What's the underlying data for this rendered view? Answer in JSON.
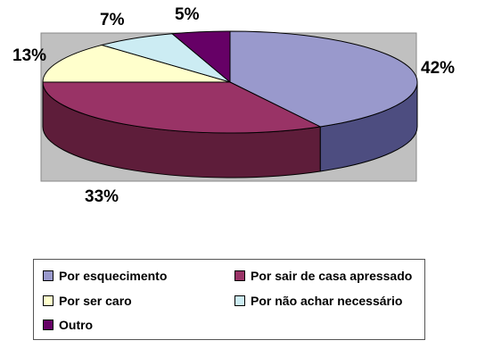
{
  "chart_data": {
    "type": "pie",
    "categories": [
      "Por esquecimento",
      "Por sair de casa apressado",
      "Por ser caro",
      "Por não achar necessário",
      "Outro"
    ],
    "values": [
      42,
      33,
      13,
      7,
      5
    ],
    "labels": [
      "42%",
      "33%",
      "13%",
      "7%",
      "5%"
    ],
    "colors": [
      "#9999cc",
      "#993366",
      "#ffffcc",
      "#ccecf3",
      "#660066"
    ],
    "side_colors": [
      "#4d4d80",
      "#5e1d3a",
      "#b0b08a",
      "#8aa5ab",
      "#3a003a"
    ],
    "legend_position": "bottom",
    "three_d": true
  }
}
